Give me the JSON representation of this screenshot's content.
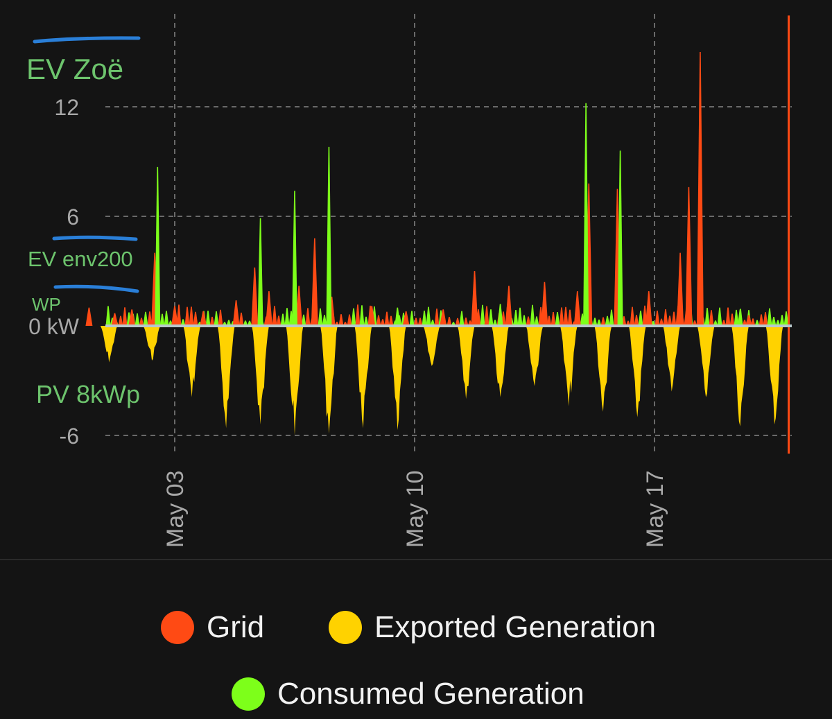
{
  "chart_data": {
    "type": "area",
    "y_unit": "kW",
    "ylim": [
      -6.8,
      15.8
    ],
    "y_ticks": [
      {
        "value": 12,
        "label": "12"
      },
      {
        "value": 6,
        "label": "6"
      },
      {
        "value": 0,
        "label": "0 kW"
      },
      {
        "value": -6,
        "label": "-6"
      }
    ],
    "x_range_days": [
      "2023-04-30",
      "2023-05-20"
    ],
    "x_ticks": [
      {
        "date": "2023-05-03",
        "label": "May 03"
      },
      {
        "date": "2023-05-10",
        "label": "May 10"
      },
      {
        "date": "2023-05-17",
        "label": "May 17"
      }
    ],
    "grid": true,
    "legend_position": "bottom",
    "series": [
      {
        "name": "Grid",
        "color": "#ff4a14",
        "points": [
          [
            "2023-04-30T12:00",
            1.0
          ],
          [
            "2023-05-01T06:00",
            0.7
          ],
          [
            "2023-05-01T18:00",
            0.9
          ],
          [
            "2023-05-02T10:00",
            4.0
          ],
          [
            "2023-05-03T00:00",
            1.1
          ],
          [
            "2023-05-03T20:00",
            0.8
          ],
          [
            "2023-05-04T19:00",
            1.4
          ],
          [
            "2023-05-05T08:00",
            3.2
          ],
          [
            "2023-05-05T18:00",
            1.9
          ],
          [
            "2023-05-06T15:00",
            2.2
          ],
          [
            "2023-05-07T02:00",
            4.8
          ],
          [
            "2023-05-07T14:00",
            1.6
          ],
          [
            "2023-05-08T18:00",
            1.1
          ],
          [
            "2023-05-09T18:00",
            0.8
          ],
          [
            "2023-05-10T20:00",
            0.9
          ],
          [
            "2023-05-11T18:00",
            3.0
          ],
          [
            "2023-05-12T18:00",
            2.2
          ],
          [
            "2023-05-13T19:00",
            2.4
          ],
          [
            "2023-05-14T18:00",
            1.9
          ],
          [
            "2023-05-15T02:00",
            7.8
          ],
          [
            "2023-05-15T22:00",
            7.5
          ],
          [
            "2023-05-16T20:00",
            1.9
          ],
          [
            "2023-05-17T18:00",
            4.0
          ],
          [
            "2023-05-18T00:00",
            7.6
          ],
          [
            "2023-05-18T08:00",
            15.0
          ],
          [
            "2023-05-19T18:00",
            0.6
          ],
          [
            "2023-05-20T22:00",
            17.0
          ],
          [
            "2023-05-20T23:00",
            -7.0
          ]
        ]
      },
      {
        "name": "Exported Generation",
        "color": "#ffd200",
        "points": [
          [
            "2023-05-01T02:00",
            -2.0
          ],
          [
            "2023-05-02T08:00",
            -1.9
          ],
          [
            "2023-05-03T12:00",
            -3.9
          ],
          [
            "2023-05-04T12:00",
            -5.6
          ],
          [
            "2023-05-05T12:00",
            -5.4
          ],
          [
            "2023-05-06T12:00",
            -6.0
          ],
          [
            "2023-05-07T12:00",
            -5.9
          ],
          [
            "2023-05-08T12:00",
            -5.6
          ],
          [
            "2023-05-09T12:00",
            -5.7
          ],
          [
            "2023-05-10T12:00",
            -2.2
          ],
          [
            "2023-05-11T12:00",
            -4.0
          ],
          [
            "2023-05-12T12:00",
            -3.9
          ],
          [
            "2023-05-13T12:00",
            -3.3
          ],
          [
            "2023-05-14T12:00",
            -4.4
          ],
          [
            "2023-05-15T12:00",
            -4.7
          ],
          [
            "2023-05-16T12:00",
            -5.0
          ],
          [
            "2023-05-17T12:00",
            -3.6
          ],
          [
            "2023-05-18T12:00",
            -3.9
          ],
          [
            "2023-05-19T12:00",
            -5.5
          ],
          [
            "2023-05-20T12:00",
            -5.4
          ]
        ]
      },
      {
        "name": "Consumed Generation",
        "color": "#7dff1a",
        "points": [
          [
            "2023-05-02T12:00",
            8.7
          ],
          [
            "2023-05-05T12:00",
            5.9
          ],
          [
            "2023-05-06T12:00",
            7.4
          ],
          [
            "2023-05-07T12:00",
            9.8
          ],
          [
            "2023-05-15T00:00",
            12.2
          ],
          [
            "2023-05-16T00:00",
            9.6
          ],
          [
            "2023-05-09T12:00",
            1.0
          ],
          [
            "2023-05-12T12:00",
            1.2
          ],
          [
            "2023-05-19T12:00",
            0.9
          ]
        ]
      }
    ]
  },
  "annotations": {
    "ev_zoe": "EV Zoë",
    "ev_env200": "EV env200",
    "wp": "WP",
    "pv": "PV 8kWp"
  },
  "legend": [
    {
      "label": "Grid",
      "color": "#ff4a14"
    },
    {
      "label": "Exported Generation",
      "color": "#ffd200"
    },
    {
      "label": "Consumed Generation",
      "color": "#7dff1a"
    }
  ]
}
